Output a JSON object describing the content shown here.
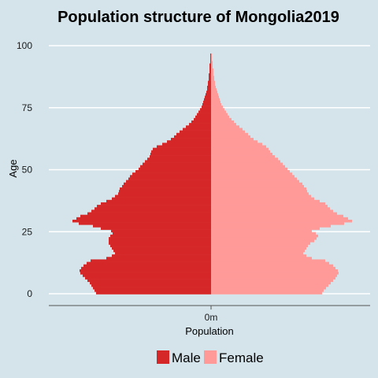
{
  "chart_data": {
    "type": "bar",
    "orientation": "horizontal-population-pyramid",
    "title": "Population structure of Mongolia2019",
    "xlabel": "Population",
    "ylabel": "Age",
    "x_ticks": [
      "0m"
    ],
    "y_ticks": [
      "0",
      "25",
      "50",
      "75",
      "100"
    ],
    "ylim": [
      0,
      100
    ],
    "grid": "horizontal",
    "legend_position": "bottom",
    "colors": {
      "male": "#d62728",
      "female": "#ff9a98",
      "background": "#d5e4eb",
      "grid": "#ffffff"
    },
    "units": "relative",
    "ages": [
      0,
      1,
      2,
      3,
      4,
      5,
      6,
      7,
      8,
      9,
      10,
      11,
      12,
      13,
      14,
      15,
      16,
      17,
      18,
      19,
      20,
      21,
      22,
      23,
      24,
      25,
      26,
      27,
      28,
      29,
      30,
      31,
      32,
      33,
      34,
      35,
      36,
      37,
      38,
      39,
      40,
      41,
      42,
      43,
      44,
      45,
      46,
      47,
      48,
      49,
      50,
      51,
      52,
      53,
      54,
      55,
      56,
      57,
      58,
      59,
      60,
      61,
      62,
      63,
      64,
      65,
      66,
      67,
      68,
      69,
      70,
      71,
      72,
      73,
      74,
      75,
      76,
      77,
      78,
      79,
      80,
      81,
      82,
      83,
      84,
      85,
      86,
      87,
      88,
      89,
      90,
      91,
      92,
      93,
      94,
      95,
      96
    ],
    "series": [
      {
        "name": "Male",
        "values": [
          146,
          148,
          150,
          152,
          154,
          157,
          160,
          163,
          166,
          167,
          165,
          162,
          158,
          153,
          133,
          126,
          122,
          124,
          126,
          128,
          130,
          130,
          130,
          128,
          125,
          127,
          140,
          150,
          168,
          176,
          171,
          166,
          157,
          152,
          148,
          145,
          140,
          133,
          126,
          122,
          118,
          117,
          116,
          113,
          111,
          108,
          105,
          103,
          100,
          96,
          92,
          90,
          87,
          84,
          81,
          78,
          77,
          76,
          74,
          69,
          62,
          56,
          51,
          47,
          44,
          40,
          36,
          32,
          28,
          25,
          22,
          20,
          18,
          16,
          14,
          12,
          11,
          10,
          9,
          8,
          7,
          6,
          5,
          5,
          4,
          4,
          3,
          3,
          3,
          2,
          2,
          2,
          2,
          1,
          1,
          1,
          1
        ]
      },
      {
        "name": "Female",
        "values": [
          141,
          143,
          146,
          149,
          152,
          155,
          158,
          160,
          162,
          161,
          158,
          155,
          150,
          145,
          128,
          121,
          117,
          119,
          121,
          123,
          126,
          131,
          134,
          136,
          133,
          128,
          138,
          152,
          169,
          179,
          174,
          168,
          160,
          155,
          151,
          148,
          145,
          138,
          131,
          127,
          124,
          122,
          121,
          118,
          116,
          112,
          109,
          106,
          103,
          100,
          97,
          94,
          91,
          88,
          85,
          81,
          78,
          75,
          73,
          70,
          65,
          59,
          54,
          50,
          47,
          43,
          40,
          36,
          32,
          29,
          26,
          23,
          21,
          19,
          17,
          15,
          13,
          12,
          11,
          10,
          9,
          8,
          7,
          6,
          5,
          5,
          4,
          4,
          3,
          3,
          3,
          2,
          2,
          2,
          1,
          1,
          1
        ]
      }
    ]
  }
}
